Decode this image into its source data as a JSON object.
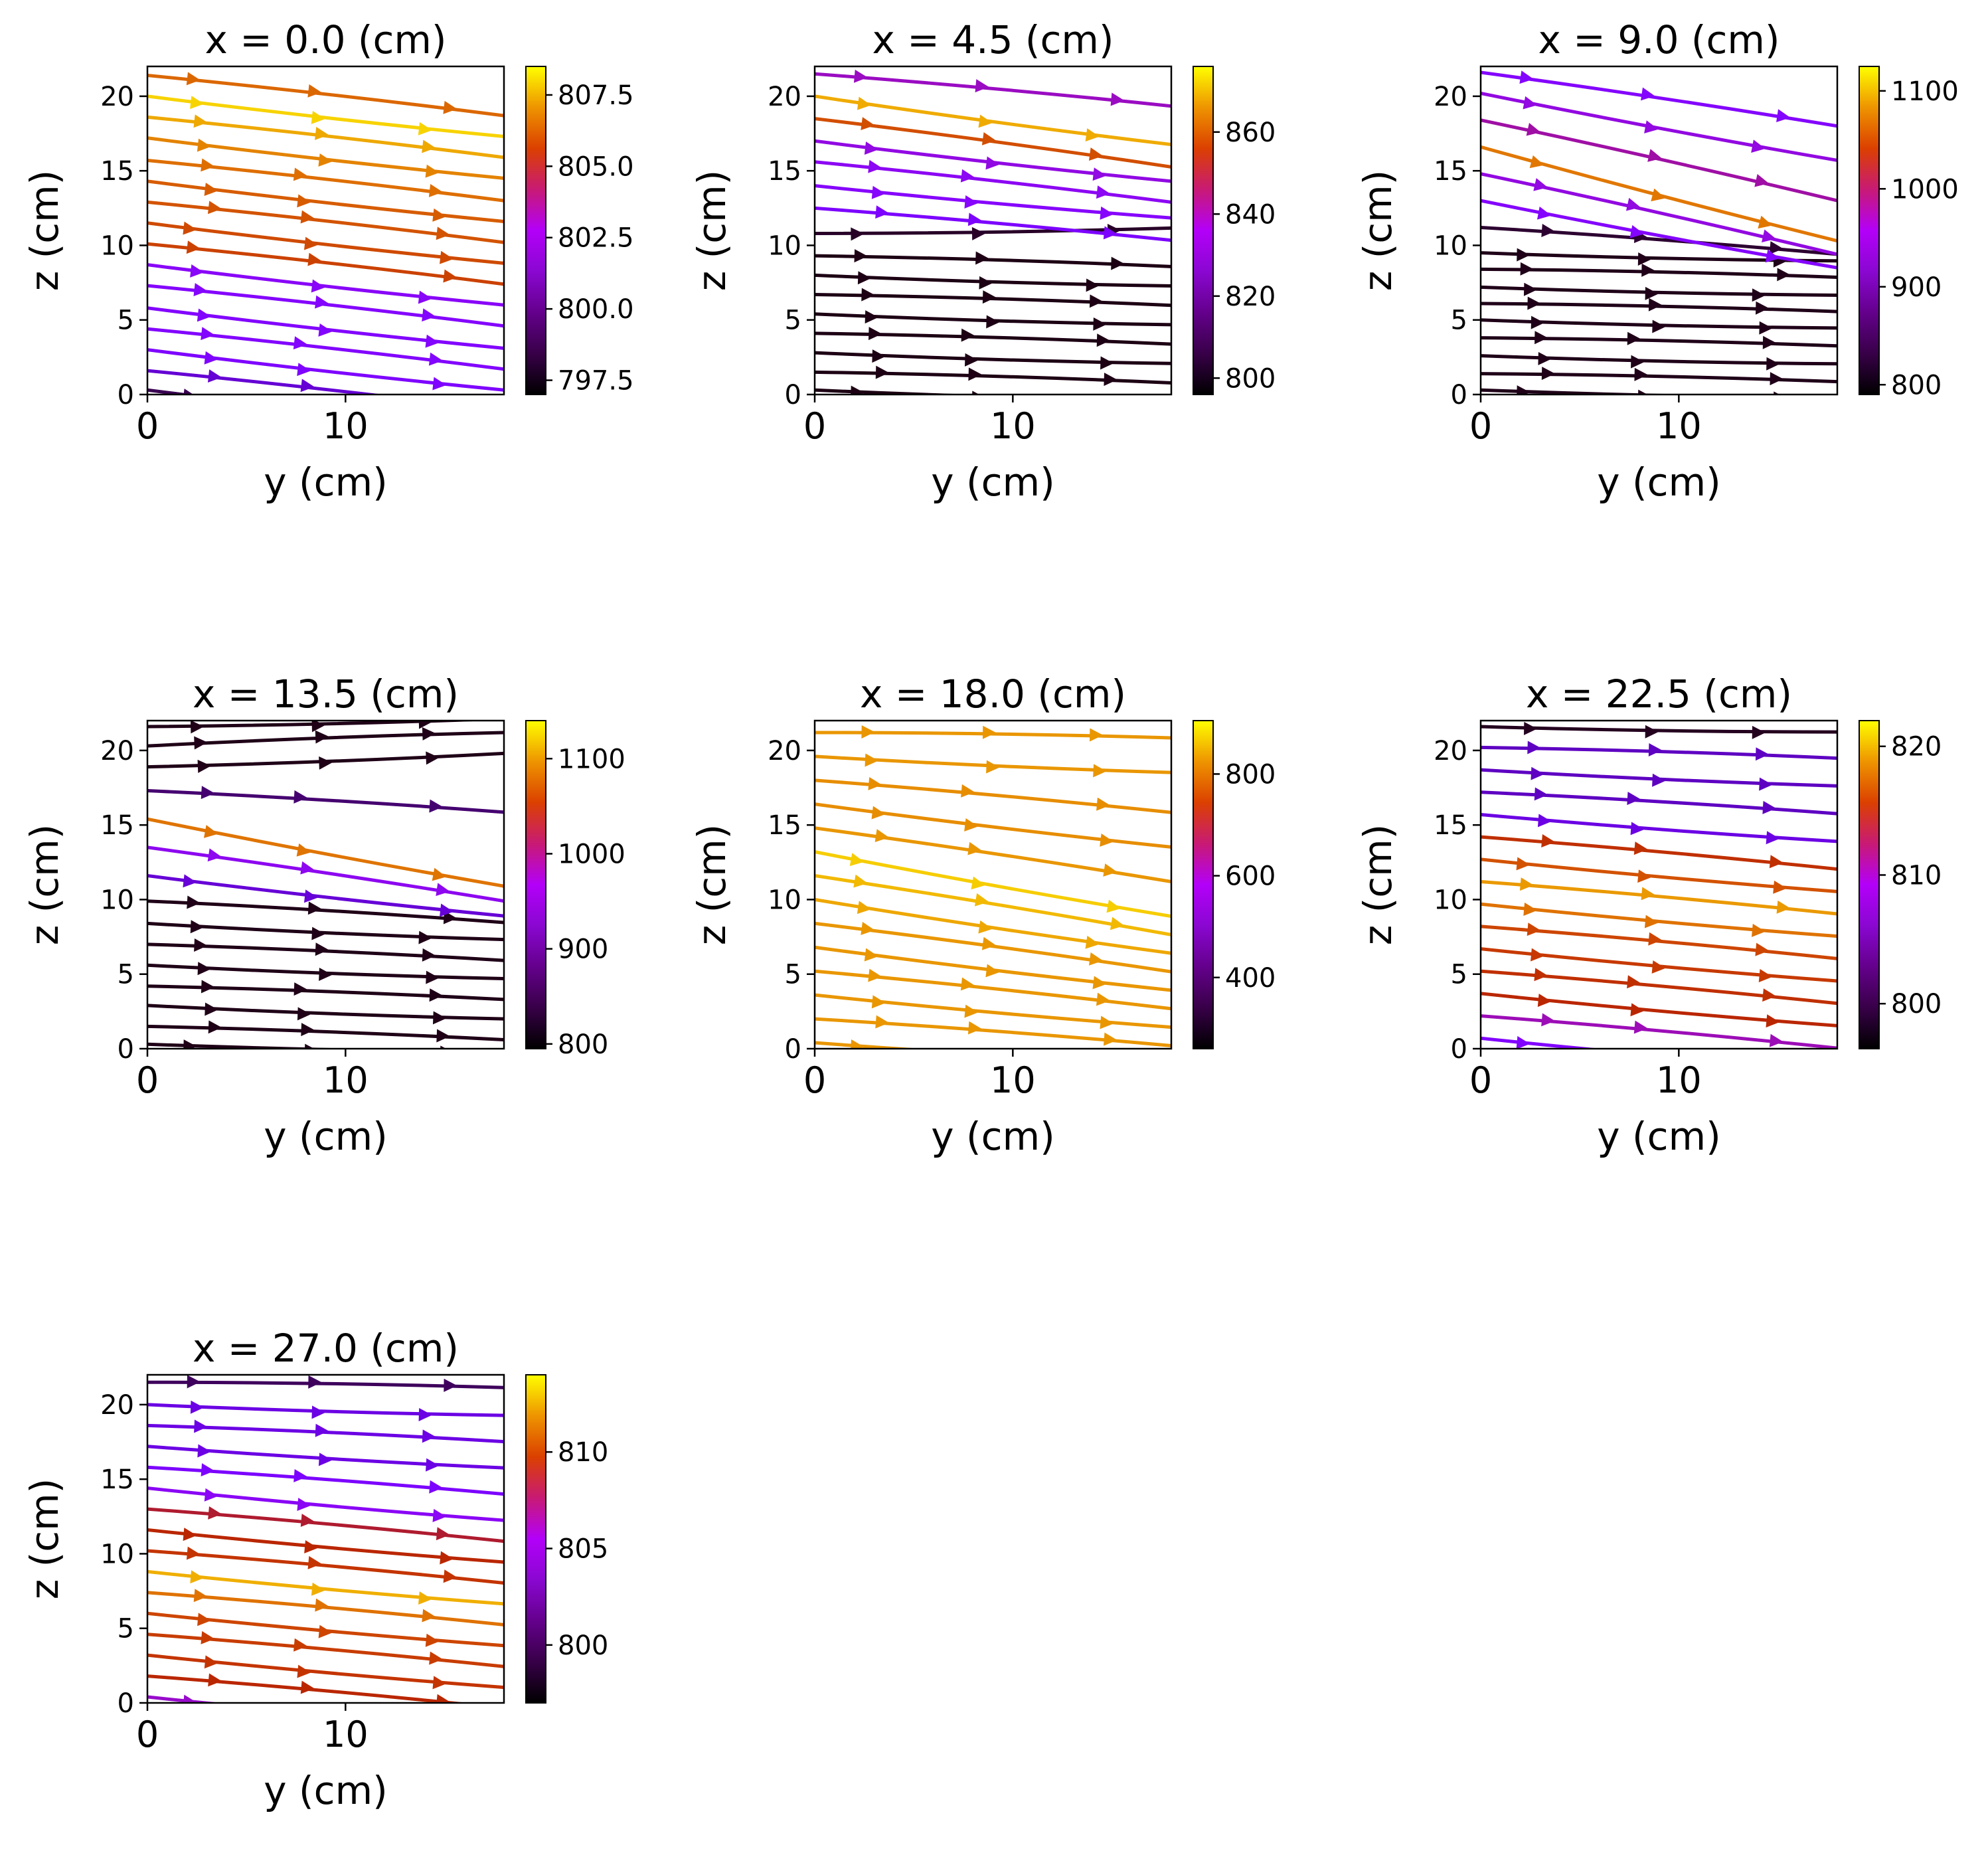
{
  "chart_data": [
    {
      "type": "streamplot",
      "title": "x = 0.0 (cm)",
      "xlabel": "y (cm)",
      "ylabel": "z (cm)",
      "xlim": [
        0,
        18
      ],
      "ylim": [
        0,
        22
      ],
      "xticks": [
        "0",
        "10"
      ],
      "yticks": [
        "0",
        "5",
        "10",
        "15",
        "20"
      ],
      "colorbar": {
        "range": [
          797.0,
          808.5
        ],
        "ticks": [
          "797.5",
          "800.0",
          "802.5",
          "805.0",
          "807.5"
        ]
      },
      "streamlines": [
        {
          "z0": 0.3,
          "slope": -0.15,
          "value": 797.6
        },
        {
          "z0": 1.6,
          "slope": -0.15,
          "value": 798.8
        },
        {
          "z0": 3.0,
          "slope": -0.15,
          "value": 799.8
        },
        {
          "z0": 4.4,
          "slope": -0.15,
          "value": 800.0
        },
        {
          "z0": 5.8,
          "slope": -0.15,
          "value": 800.0
        },
        {
          "z0": 7.3,
          "slope": -0.15,
          "value": 800.1
        },
        {
          "z0": 8.7,
          "slope": -0.15,
          "value": 800.3
        },
        {
          "z0": 10.1,
          "slope": -0.15,
          "value": 804.3
        },
        {
          "z0": 11.5,
          "slope": -0.15,
          "value": 804.6
        },
        {
          "z0": 12.9,
          "slope": -0.15,
          "value": 804.9
        },
        {
          "z0": 14.3,
          "slope": -0.15,
          "value": 805.2
        },
        {
          "z0": 15.7,
          "slope": -0.15,
          "value": 805.7
        },
        {
          "z0": 17.2,
          "slope": -0.15,
          "value": 806.2
        },
        {
          "z0": 18.6,
          "slope": -0.15,
          "value": 807.0
        },
        {
          "z0": 20.0,
          "slope": -0.15,
          "value": 807.8
        },
        {
          "z0": 21.4,
          "slope": -0.15,
          "value": 805.5
        }
      ]
    },
    {
      "type": "streamplot",
      "title": "x = 4.5 (cm)",
      "xlabel": "y (cm)",
      "ylabel": "z (cm)",
      "xlim": [
        0,
        18
      ],
      "ylim": [
        0,
        22
      ],
      "xticks": [
        "0",
        "10"
      ],
      "yticks": [
        "0",
        "5",
        "10",
        "15",
        "20"
      ],
      "colorbar": {
        "range": [
          796,
          876
        ],
        "ticks": [
          "800",
          "820",
          "840",
          "860"
        ]
      },
      "streamlines": [
        {
          "z0": 0.3,
          "slope": -0.04,
          "value": 797
        },
        {
          "z0": 1.5,
          "slope": -0.04,
          "value": 797
        },
        {
          "z0": 2.8,
          "slope": -0.04,
          "value": 797
        },
        {
          "z0": 4.1,
          "slope": -0.04,
          "value": 797
        },
        {
          "z0": 5.4,
          "slope": -0.04,
          "value": 797
        },
        {
          "z0": 6.7,
          "slope": -0.04,
          "value": 797
        },
        {
          "z0": 8.0,
          "slope": -0.04,
          "value": 797
        },
        {
          "z0": 9.3,
          "slope": -0.04,
          "value": 797
        },
        {
          "z0": 10.8,
          "slope": 0.02,
          "value": 798
        },
        {
          "z0": 12.5,
          "slope": -0.12,
          "value": 815
        },
        {
          "z0": 14.0,
          "slope": -0.12,
          "value": 818
        },
        {
          "z0": 15.6,
          "slope": -0.15,
          "value": 820
        },
        {
          "z0": 17.0,
          "slope": -0.15,
          "value": 822
        },
        {
          "z0": 18.5,
          "slope": -0.18,
          "value": 850
        },
        {
          "z0": 20.0,
          "slope": -0.18,
          "value": 866
        },
        {
          "z0": 21.5,
          "slope": -0.12,
          "value": 825
        }
      ]
    },
    {
      "type": "streamplot",
      "title": "x = 9.0 (cm)",
      "xlabel": "y (cm)",
      "ylabel": "z (cm)",
      "xlim": [
        0,
        18
      ],
      "ylim": [
        0,
        22
      ],
      "xticks": [
        "0",
        "10"
      ],
      "yticks": [
        "0",
        "5",
        "10",
        "15",
        "20"
      ],
      "colorbar": {
        "range": [
          790,
          1125
        ],
        "ticks": [
          "800",
          "900",
          "1000",
          "1100"
        ]
      },
      "streamlines": [
        {
          "z0": 0.3,
          "slope": -0.03,
          "value": 795
        },
        {
          "z0": 1.4,
          "slope": -0.03,
          "value": 795
        },
        {
          "z0": 2.6,
          "slope": -0.03,
          "value": 795
        },
        {
          "z0": 3.8,
          "slope": -0.03,
          "value": 795
        },
        {
          "z0": 5.0,
          "slope": -0.03,
          "value": 795
        },
        {
          "z0": 6.1,
          "slope": -0.03,
          "value": 795
        },
        {
          "z0": 7.2,
          "slope": -0.03,
          "value": 795
        },
        {
          "z0": 8.4,
          "slope": -0.03,
          "value": 795
        },
        {
          "z0": 9.5,
          "slope": -0.03,
          "value": 795
        },
        {
          "z0": 11.2,
          "slope": -0.1,
          "value": 800
        },
        {
          "z0": 13.0,
          "slope": -0.25,
          "value": 880
        },
        {
          "z0": 14.8,
          "slope": -0.3,
          "value": 900
        },
        {
          "z0": 16.6,
          "slope": -0.35,
          "value": 1050
        },
        {
          "z0": 18.4,
          "slope": -0.3,
          "value": 920
        },
        {
          "z0": 20.2,
          "slope": -0.25,
          "value": 900
        },
        {
          "z0": 21.6,
          "slope": -0.2,
          "value": 880
        }
      ]
    },
    {
      "type": "streamplot",
      "title": "x = 13.5 (cm)",
      "xlabel": "y (cm)",
      "ylabel": "z (cm)",
      "xlim": [
        0,
        18
      ],
      "ylim": [
        0,
        22
      ],
      "xticks": [
        "0",
        "10"
      ],
      "yticks": [
        "0",
        "5",
        "10",
        "15",
        "20"
      ],
      "colorbar": {
        "range": [
          795,
          1140
        ],
        "ticks": [
          "800",
          "900",
          "1000",
          "1100"
        ]
      },
      "streamlines": [
        {
          "z0": 0.3,
          "slope": -0.03,
          "value": 800
        },
        {
          "z0": 1.5,
          "slope": -0.05,
          "value": 800
        },
        {
          "z0": 2.9,
          "slope": -0.05,
          "value": 800
        },
        {
          "z0": 4.2,
          "slope": -0.05,
          "value": 800
        },
        {
          "z0": 5.6,
          "slope": -0.05,
          "value": 800
        },
        {
          "z0": 7.0,
          "slope": -0.06,
          "value": 800
        },
        {
          "z0": 8.4,
          "slope": -0.06,
          "value": 800
        },
        {
          "z0": 9.9,
          "slope": -0.08,
          "value": 800
        },
        {
          "z0": 11.6,
          "slope": -0.15,
          "value": 850
        },
        {
          "z0": 13.5,
          "slope": -0.2,
          "value": 900
        },
        {
          "z0": 15.4,
          "slope": -0.25,
          "value": 1060
        },
        {
          "z0": 17.3,
          "slope": -0.08,
          "value": 820
        },
        {
          "z0": 18.9,
          "slope": 0.05,
          "value": 800
        },
        {
          "z0": 20.3,
          "slope": 0.05,
          "value": 800
        },
        {
          "z0": 21.6,
          "slope": 0.03,
          "value": 800
        }
      ]
    },
    {
      "type": "streamplot",
      "title": "x = 18.0 (cm)",
      "xlabel": "y (cm)",
      "ylabel": "z (cm)",
      "xlim": [
        0,
        18
      ],
      "ylim": [
        0,
        22
      ],
      "xticks": [
        "0",
        "10"
      ],
      "yticks": [
        "0",
        "5",
        "10",
        "15",
        "20"
      ],
      "colorbar": {
        "range": [
          260,
          905
        ],
        "ticks": [
          "400",
          "600",
          "800"
        ]
      },
      "streamlines": [
        {
          "z0": 0.4,
          "slope": -0.08,
          "value": 800
        },
        {
          "z0": 2.0,
          "slope": -0.1,
          "value": 800
        },
        {
          "z0": 3.6,
          "slope": -0.12,
          "value": 800
        },
        {
          "z0": 5.2,
          "slope": -0.14,
          "value": 800
        },
        {
          "z0": 6.8,
          "slope": -0.16,
          "value": 800
        },
        {
          "z0": 8.4,
          "slope": -0.18,
          "value": 800
        },
        {
          "z0": 10.0,
          "slope": -0.2,
          "value": 820
        },
        {
          "z0": 11.6,
          "slope": -0.22,
          "value": 840
        },
        {
          "z0": 13.2,
          "slope": -0.24,
          "value": 860
        },
        {
          "z0": 14.8,
          "slope": -0.2,
          "value": 800
        },
        {
          "z0": 16.4,
          "slope": -0.16,
          "value": 790
        },
        {
          "z0": 18.0,
          "slope": -0.12,
          "value": 790
        },
        {
          "z0": 19.6,
          "slope": -0.06,
          "value": 800
        },
        {
          "z0": 21.2,
          "slope": -0.02,
          "value": 800
        }
      ]
    },
    {
      "type": "streamplot",
      "title": "x = 22.5 (cm)",
      "xlabel": "y (cm)",
      "ylabel": "z (cm)",
      "xlim": [
        0,
        18
      ],
      "ylim": [
        0,
        22
      ],
      "xticks": [
        "0",
        "10"
      ],
      "yticks": [
        "0",
        "5",
        "10",
        "15",
        "20"
      ],
      "colorbar": {
        "range": [
          796.5,
          822
        ],
        "ticks": [
          "800",
          "810",
          "820"
        ]
      },
      "streamlines": [
        {
          "z0": 0.7,
          "slope": -0.12,
          "value": 803
        },
        {
          "z0": 2.2,
          "slope": -0.12,
          "value": 806
        },
        {
          "z0": 3.7,
          "slope": -0.12,
          "value": 810
        },
        {
          "z0": 5.2,
          "slope": -0.12,
          "value": 811
        },
        {
          "z0": 6.7,
          "slope": -0.12,
          "value": 812
        },
        {
          "z0": 8.2,
          "slope": -0.12,
          "value": 813
        },
        {
          "z0": 9.7,
          "slope": -0.12,
          "value": 816
        },
        {
          "z0": 11.2,
          "slope": -0.12,
          "value": 818
        },
        {
          "z0": 12.7,
          "slope": -0.12,
          "value": 814
        },
        {
          "z0": 14.2,
          "slope": -0.12,
          "value": 811
        },
        {
          "z0": 15.7,
          "slope": -0.1,
          "value": 801
        },
        {
          "z0": 17.2,
          "slope": -0.08,
          "value": 800
        },
        {
          "z0": 18.7,
          "slope": -0.06,
          "value": 800
        },
        {
          "z0": 20.2,
          "slope": -0.04,
          "value": 800
        },
        {
          "z0": 21.6,
          "slope": -0.02,
          "value": 797
        }
      ]
    },
    {
      "type": "streamplot",
      "title": "x = 27.0 (cm)",
      "xlabel": "y (cm)",
      "ylabel": "z (cm)",
      "xlim": [
        0,
        18
      ],
      "ylim": [
        0,
        22
      ],
      "xticks": [
        "0",
        "10"
      ],
      "yticks": [
        "0",
        "5",
        "10",
        "15",
        "20"
      ],
      "colorbar": {
        "range": [
          797,
          814
        ],
        "ticks": [
          "800",
          "805",
          "810"
        ]
      },
      "streamlines": [
        {
          "z0": 0.4,
          "slope": -0.12,
          "value": 803
        },
        {
          "z0": 1.8,
          "slope": -0.12,
          "value": 806
        },
        {
          "z0": 3.2,
          "slope": -0.12,
          "value": 807
        },
        {
          "z0": 4.6,
          "slope": -0.12,
          "value": 807.5
        },
        {
          "z0": 6.0,
          "slope": -0.12,
          "value": 808
        },
        {
          "z0": 7.4,
          "slope": -0.12,
          "value": 810
        },
        {
          "z0": 8.8,
          "slope": -0.12,
          "value": 812
        },
        {
          "z0": 10.2,
          "slope": -0.12,
          "value": 807
        },
        {
          "z0": 11.6,
          "slope": -0.12,
          "value": 806
        },
        {
          "z0": 13.0,
          "slope": -0.12,
          "value": 805
        },
        {
          "z0": 14.4,
          "slope": -0.12,
          "value": 802
        },
        {
          "z0": 15.8,
          "slope": -0.1,
          "value": 801
        },
        {
          "z0": 17.2,
          "slope": -0.08,
          "value": 800
        },
        {
          "z0": 18.6,
          "slope": -0.06,
          "value": 800
        },
        {
          "z0": 20.0,
          "slope": -0.04,
          "value": 800
        },
        {
          "z0": 21.5,
          "slope": -0.02,
          "value": 798
        }
      ]
    }
  ]
}
